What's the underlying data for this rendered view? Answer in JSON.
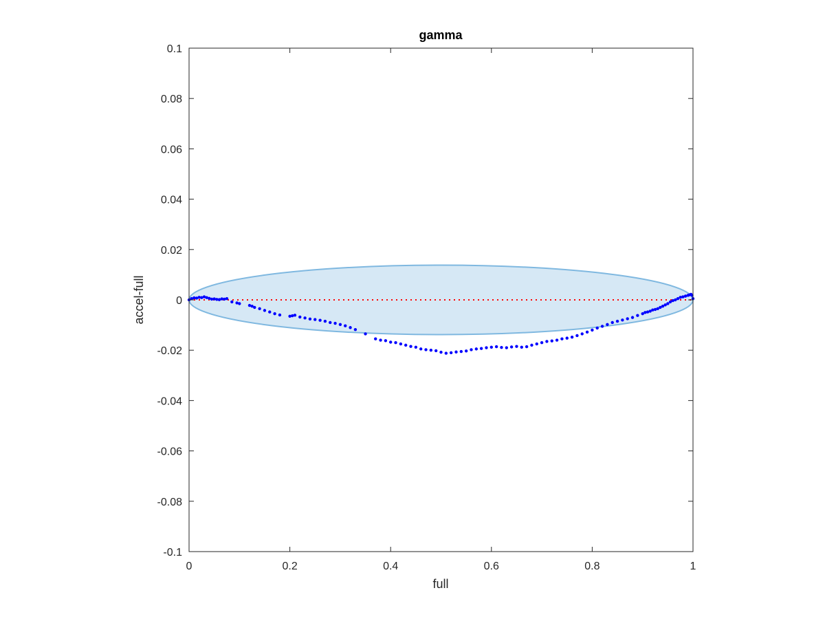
{
  "chart_data": {
    "type": "scatter",
    "title": "gamma",
    "xlabel": "full",
    "ylabel": "accel-full",
    "xlim": [
      0,
      1
    ],
    "ylim": [
      -0.1,
      0.1
    ],
    "xticks": [
      "0",
      "0.2",
      "0.4",
      "0.6",
      "0.8",
      "1"
    ],
    "yticks": [
      "0.1",
      "0.08",
      "0.06",
      "0.04",
      "0.02",
      "0",
      "-0.02",
      "-0.04",
      "-0.06",
      "-0.08",
      "-0.1"
    ],
    "grid": false,
    "colors": {
      "points": "#0000ff",
      "reference_line": "#ff0000",
      "ellipse_fill": "#d6e8f5",
      "ellipse_edge": "#7fb8e0"
    },
    "reference_line": {
      "y": 0,
      "style": "dotted"
    },
    "ellipse": {
      "cx": 0.5,
      "cy": 0,
      "rx": 0.5,
      "ry": 0.0138
    },
    "series": [
      {
        "x": [
          0.0,
          0.005,
          0.01,
          0.015,
          0.02,
          0.025,
          0.03,
          0.035,
          0.04,
          0.045,
          0.05,
          0.055,
          0.06,
          0.065,
          0.07,
          0.075,
          0.085,
          0.095,
          0.1,
          0.12,
          0.125,
          0.13,
          0.14,
          0.15,
          0.16,
          0.17,
          0.18,
          0.2,
          0.205,
          0.21,
          0.22,
          0.23,
          0.24,
          0.25,
          0.26,
          0.27,
          0.28,
          0.29,
          0.3,
          0.31,
          0.32,
          0.33,
          0.35,
          0.37,
          0.38,
          0.39,
          0.4,
          0.41,
          0.42,
          0.43,
          0.44,
          0.45,
          0.46,
          0.47,
          0.48,
          0.49,
          0.5,
          0.51,
          0.52,
          0.53,
          0.54,
          0.55,
          0.56,
          0.57,
          0.58,
          0.59,
          0.6,
          0.61,
          0.62,
          0.63,
          0.64,
          0.65,
          0.66,
          0.67,
          0.68,
          0.69,
          0.7,
          0.71,
          0.72,
          0.73,
          0.74,
          0.75,
          0.76,
          0.77,
          0.78,
          0.79,
          0.8,
          0.81,
          0.82,
          0.83,
          0.84,
          0.85,
          0.86,
          0.87,
          0.88,
          0.89,
          0.9,
          0.905,
          0.91,
          0.915,
          0.92,
          0.925,
          0.93,
          0.935,
          0.94,
          0.945,
          0.95,
          0.955,
          0.96,
          0.965,
          0.97,
          0.975,
          0.98,
          0.985,
          0.99,
          0.993,
          0.996,
          0.998,
          1.0
        ],
        "y": [
          0.0,
          0.0005,
          0.0008,
          0.0007,
          0.001,
          0.0009,
          0.0012,
          0.0009,
          0.0006,
          0.0003,
          0.0004,
          0.0002,
          0.0001,
          0.0004,
          0.0003,
          0.0005,
          -0.0008,
          -0.0012,
          -0.0015,
          -0.0022,
          -0.0025,
          -0.003,
          -0.0035,
          -0.0042,
          -0.0048,
          -0.0055,
          -0.006,
          -0.0065,
          -0.0063,
          -0.0061,
          -0.0068,
          -0.0072,
          -0.0076,
          -0.0078,
          -0.0081,
          -0.0085,
          -0.009,
          -0.0093,
          -0.0098,
          -0.0103,
          -0.011,
          -0.0118,
          -0.0135,
          -0.0155,
          -0.016,
          -0.0162,
          -0.0168,
          -0.017,
          -0.0175,
          -0.018,
          -0.0185,
          -0.0188,
          -0.0195,
          -0.0198,
          -0.02,
          -0.0202,
          -0.0208,
          -0.0212,
          -0.021,
          -0.0207,
          -0.0205,
          -0.0203,
          -0.0198,
          -0.0195,
          -0.0193,
          -0.019,
          -0.0188,
          -0.0186,
          -0.0189,
          -0.019,
          -0.0187,
          -0.0185,
          -0.0188,
          -0.0186,
          -0.018,
          -0.0175,
          -0.017,
          -0.0165,
          -0.0163,
          -0.016,
          -0.0155,
          -0.0152,
          -0.0148,
          -0.0142,
          -0.0135,
          -0.0128,
          -0.012,
          -0.0112,
          -0.0105,
          -0.0098,
          -0.009,
          -0.0085,
          -0.008,
          -0.0075,
          -0.007,
          -0.0062,
          -0.0055,
          -0.005,
          -0.0048,
          -0.0045,
          -0.004,
          -0.0038,
          -0.0035,
          -0.003,
          -0.0025,
          -0.002,
          -0.0015,
          -0.0008,
          -0.0003,
          0.0,
          0.0005,
          0.001,
          0.0012,
          0.0015,
          0.0018,
          0.002,
          0.0022,
          0.0018,
          0.0005
        ]
      }
    ]
  }
}
